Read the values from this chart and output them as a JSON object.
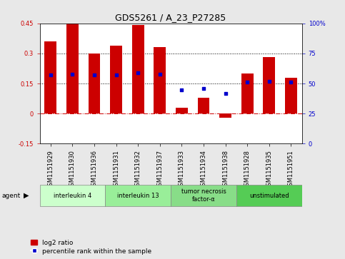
{
  "title": "GDS5261 / A_23_P27285",
  "samples": [
    "GSM1151929",
    "GSM1151930",
    "GSM1151936",
    "GSM1151931",
    "GSM1151932",
    "GSM1151937",
    "GSM1151933",
    "GSM1151934",
    "GSM1151938",
    "GSM1151928",
    "GSM1151935",
    "GSM1151951"
  ],
  "log2_ratio": [
    0.36,
    0.46,
    0.3,
    0.34,
    0.44,
    0.33,
    0.03,
    0.08,
    -0.02,
    0.2,
    0.28,
    0.18
  ],
  "percentile_rank": [
    57,
    58,
    57,
    57,
    59,
    58,
    45,
    46,
    42,
    51,
    52,
    51
  ],
  "ylim_left": [
    -0.15,
    0.45
  ],
  "ylim_right": [
    0,
    100
  ],
  "yticks_left": [
    -0.15,
    0.0,
    0.15,
    0.3,
    0.45
  ],
  "yticks_right": [
    0,
    25,
    50,
    75,
    100
  ],
  "ytick_labels_left": [
    "-0.15",
    "0",
    "0.15",
    "0.3",
    "0.45"
  ],
  "ytick_labels_right": [
    "0",
    "25",
    "50",
    "75",
    "100%"
  ],
  "hlines": [
    0.15,
    0.3
  ],
  "bar_color": "#cc0000",
  "dot_color": "#0000cc",
  "zero_line_color": "#cc0000",
  "agents": [
    {
      "label": "interleukin 4",
      "indices": [
        0,
        1,
        2
      ],
      "color": "#ccffcc"
    },
    {
      "label": "interleukin 13",
      "indices": [
        3,
        4,
        5
      ],
      "color": "#99ee99"
    },
    {
      "label": "tumor necrosis\nfactor-α",
      "indices": [
        6,
        7,
        8
      ],
      "color": "#88dd88"
    },
    {
      "label": "unstimulated",
      "indices": [
        9,
        10,
        11
      ],
      "color": "#55cc55"
    }
  ],
  "legend_red_label": "log2 ratio",
  "legend_blue_label": "percentile rank within the sample",
  "background_color": "#e8e8e8",
  "plot_bg": "#ffffff",
  "bar_width": 0.55,
  "tick_label_fontsize": 6,
  "title_fontsize": 9
}
